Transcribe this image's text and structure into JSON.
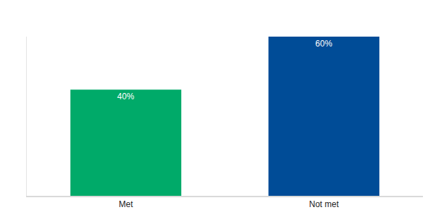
{
  "chart_data": {
    "type": "bar",
    "categories": [
      "Met",
      "Not met"
    ],
    "values": [
      40,
      60
    ],
    "value_labels": [
      "40%",
      "60%"
    ],
    "colors": [
      "#00aa69",
      "#004c97"
    ],
    "ylim": [
      0,
      60
    ],
    "grid": false,
    "data_labels": true,
    "tick_labels": "x"
  }
}
